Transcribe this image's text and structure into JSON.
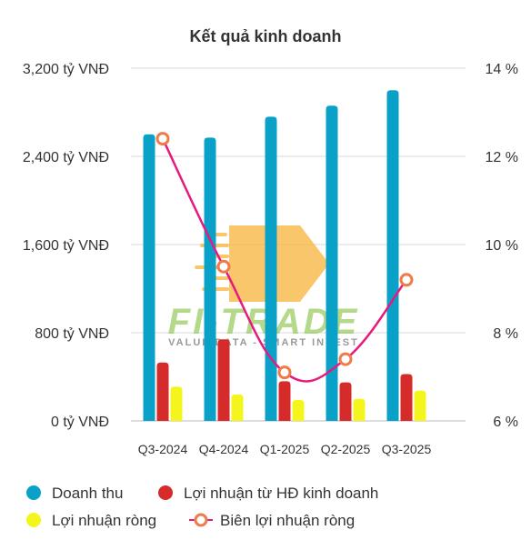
{
  "chart_data": {
    "type": "bar",
    "title": "Kết quả kinh doanh",
    "categories": [
      "Q3-2024",
      "Q4-2024",
      "Q1-2025",
      "Q2-2025",
      "Q3-2025"
    ],
    "y_left": {
      "ylim": [
        0,
        3200
      ],
      "ticks": [
        0,
        800,
        1600,
        2400,
        3200
      ],
      "tick_labels": [
        "0 tỷ VNĐ",
        "800 tỷ VNĐ",
        "1,600 tỷ VNĐ",
        "2,400 tỷ VNĐ",
        "3,200 tỷ VNĐ"
      ]
    },
    "y_right": {
      "ylim": [
        6,
        14
      ],
      "ticks": [
        6,
        8,
        10,
        12,
        14
      ],
      "tick_labels": [
        "6 %",
        "8 %",
        "10 %",
        "12 %",
        "14 %"
      ]
    },
    "series": [
      {
        "name": "Doanh thu",
        "type": "bar",
        "axis": "left",
        "color": "#0aa1c8",
        "values": [
          2600,
          2570,
          2760,
          2860,
          3000
        ]
      },
      {
        "name": "Lợi nhuận từ HĐ kinh doanh",
        "type": "bar",
        "axis": "left",
        "color": "#d52b2b",
        "values": [
          530,
          740,
          360,
          350,
          425
        ]
      },
      {
        "name": "Lợi nhuận ròng",
        "type": "bar",
        "axis": "left",
        "color": "#f5f51e",
        "values": [
          310,
          240,
          190,
          200,
          275
        ]
      },
      {
        "name": "Biên lợi nhuận ròng",
        "type": "line",
        "axis": "right",
        "color": "#e8197d",
        "marker_color": "#f07a4a",
        "smooth": true,
        "values": [
          12.4,
          9.5,
          7.1,
          7.4,
          9.2
        ]
      }
    ],
    "grid": true,
    "legend_position": "bottom"
  },
  "watermark": {
    "brand": "FI-TRADE",
    "tagline": "VALUE DATA - SMART INVEST"
  }
}
